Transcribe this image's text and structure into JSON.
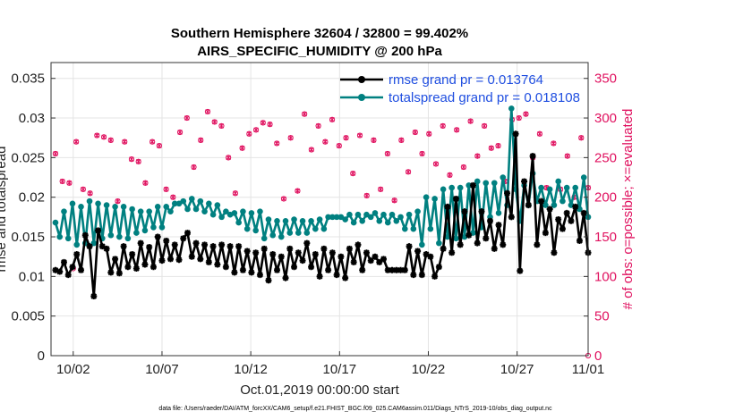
{
  "chart_data": {
    "type": "line",
    "title": "Southern Hemisphere 32604 / 32800 = 99.402%",
    "subtitle": "AIRS_SPECIFIC_HUMIDITY @ 200 hPa",
    "xlabel": "Oct.01,2019 00:00:00 start",
    "ylabel_left": "rmse and totalspread",
    "ylabel_right": "# of obs: o=possible; ×=evaluated",
    "xlim": [
      0.75,
      31.0
    ],
    "ylim_left": [
      0,
      0.037
    ],
    "ylim_right": [
      0,
      370
    ],
    "x_ticks": [
      "10/02",
      "10/07",
      "10/12",
      "10/17",
      "10/22",
      "10/27",
      "11/01"
    ],
    "x_tick_values": [
      2,
      7,
      12,
      17,
      22,
      27,
      32
    ],
    "y_ticks_left": [
      "0",
      "0.005",
      "0.01",
      "0.015",
      "0.02",
      "0.025",
      "0.03",
      "0.035"
    ],
    "y_ticks_right": [
      "0",
      "50",
      "100",
      "150",
      "200",
      "250",
      "300",
      "350"
    ],
    "legend": [
      {
        "name": "rmse grand pr = 0.013764",
        "color": "#000000"
      },
      {
        "name": "totalspread grand pr = 0.018108",
        "color": "#008080"
      }
    ],
    "footer": "data file: /Users/raeder/DAI/ATM_forcXX/CAM6_setup/f.e21.FHIST_BGC.f09_025.CAM6assim.011/Diags_NTrS_2019-10/obs_diag_output.nc",
    "series": [
      {
        "name": "rmse",
        "color": "#000000",
        "values": [
          0.0108,
          0.0106,
          0.0118,
          0.0102,
          0.0112,
          0.0128,
          0.0108,
          0.0152,
          0.0138,
          0.0075,
          0.0158,
          0.0138,
          0.0135,
          0.0105,
          0.0122,
          0.0104,
          0.0138,
          0.0112,
          0.0128,
          0.011,
          0.0142,
          0.0115,
          0.0137,
          0.0112,
          0.015,
          0.012,
          0.0145,
          0.0122,
          0.014,
          0.0121,
          0.0148,
          0.0155,
          0.0125,
          0.0142,
          0.0122,
          0.014,
          0.0118,
          0.0138,
          0.0115,
          0.014,
          0.0112,
          0.0138,
          0.0105,
          0.0138,
          0.0108,
          0.0132,
          0.0105,
          0.013,
          0.0102,
          0.0135,
          0.0095,
          0.0128,
          0.0108,
          0.0125,
          0.0098,
          0.0135,
          0.0112,
          0.013,
          0.012,
          0.0142,
          0.0112,
          0.0128,
          0.01,
          0.0135,
          0.0108,
          0.013,
          0.0102,
          0.0125,
          0.0098,
          0.0135,
          0.0118,
          0.014,
          0.0108,
          0.013,
          0.012,
          0.0125,
          0.0118,
          0.0122,
          0.0108,
          0.0108,
          0.0108,
          0.0108,
          0.0108,
          0.0138,
          0.0102,
          0.0132,
          0.0102,
          0.0128,
          0.0125,
          0.01,
          0.0112,
          0.0135,
          0.0188,
          0.013,
          0.0198,
          0.014,
          0.0182,
          0.0152,
          0.0215,
          0.0142,
          0.0182,
          0.0148,
          0.017,
          0.0135,
          0.0165,
          0.014,
          0.0205,
          0.0175,
          0.028,
          0.0107,
          0.022,
          0.019,
          0.0252,
          0.014,
          0.0195,
          0.0155,
          0.0185,
          0.013,
          0.0172,
          0.016,
          0.018,
          0.017,
          0.0188,
          0.0145,
          0.018,
          0.013
        ]
      },
      {
        "name": "totalspread",
        "color": "#008080",
        "values": [
          0.0168,
          0.015,
          0.0182,
          0.0148,
          0.0192,
          0.014,
          0.0188,
          0.0142,
          0.0195,
          0.0142,
          0.0192,
          0.0148,
          0.019,
          0.0152,
          0.0188,
          0.015,
          0.0188,
          0.0148,
          0.0185,
          0.0155,
          0.0182,
          0.0158,
          0.0182,
          0.0162,
          0.0188,
          0.0162,
          0.0188,
          0.0182,
          0.0192,
          0.0192,
          0.0195,
          0.0185,
          0.0198,
          0.0185,
          0.0195,
          0.0182,
          0.0192,
          0.0178,
          0.019,
          0.0175,
          0.0182,
          0.0178,
          0.018,
          0.0168,
          0.0182,
          0.016,
          0.018,
          0.0158,
          0.0182,
          0.0148,
          0.0172,
          0.0152,
          0.017,
          0.015,
          0.017,
          0.0155,
          0.0172,
          0.0155,
          0.017,
          0.0155,
          0.017,
          0.016,
          0.0172,
          0.016,
          0.0175,
          0.0175,
          0.0175,
          0.0175,
          0.0172,
          0.0178,
          0.0168,
          0.0178,
          0.017,
          0.0178,
          0.0175,
          0.018,
          0.017,
          0.0178,
          0.0168,
          0.0178,
          0.017,
          0.0175,
          0.016,
          0.0178,
          0.016,
          0.0182,
          0.014,
          0.02,
          0.016,
          0.0198,
          0.0142,
          0.021,
          0.015,
          0.0212,
          0.0148,
          0.0212,
          0.015,
          0.0215,
          0.0155,
          0.022,
          0.0162,
          0.0218,
          0.0175,
          0.0218,
          0.018,
          0.0225,
          0.019,
          0.0312,
          0.021,
          0.017,
          0.0215,
          0.019,
          0.023,
          0.0195,
          0.0212,
          0.019,
          0.021,
          0.019,
          0.022,
          0.0195,
          0.0212,
          0.019,
          0.0212,
          0.0185,
          0.0225,
          0.0175
        ]
      },
      {
        "name": "obs possible",
        "color": "#e0115f",
        "marker": "o",
        "values": [
          255,
          220,
          218,
          270,
          210,
          205,
          278,
          276,
          272,
          195,
          270,
          248,
          245,
          218,
          270,
          265,
          210,
          200,
          282,
          300,
          238,
          272,
          308,
          295,
          290,
          250,
          205,
          262,
          280,
          285,
          294,
          292,
          268,
          198,
          275,
          208,
          305,
          260,
          290,
          270,
          298,
          265,
          275,
          230,
          278,
          202,
          272,
          210,
          255,
          196,
          272,
          232,
          282,
          255,
          280,
          242,
          290,
          228,
          285,
          238,
          296,
          252,
          290,
          262,
          265,
          220,
          298,
          300,
          305,
          250,
          280,
          212,
          268,
          210,
          252,
          200,
          275,
          212
        ]
      },
      {
        "name": "obs evaluated",
        "color": "#e0115f",
        "marker": "x",
        "values": [
          255,
          220,
          218,
          270,
          210,
          205,
          278,
          276,
          272,
          195,
          270,
          248,
          245,
          218,
          270,
          265,
          210,
          200,
          282,
          300,
          238,
          272,
          308,
          295,
          290,
          250,
          205,
          262,
          280,
          285,
          294,
          292,
          268,
          198,
          275,
          208,
          305,
          260,
          290,
          270,
          298,
          265,
          275,
          230,
          278,
          202,
          272,
          210,
          255,
          196,
          272,
          232,
          282,
          255,
          280,
          242,
          290,
          228,
          285,
          238,
          296,
          252,
          290,
          262,
          265,
          220,
          298,
          300,
          305,
          250,
          280,
          212,
          268,
          210,
          252,
          200,
          275,
          212
        ]
      }
    ]
  }
}
